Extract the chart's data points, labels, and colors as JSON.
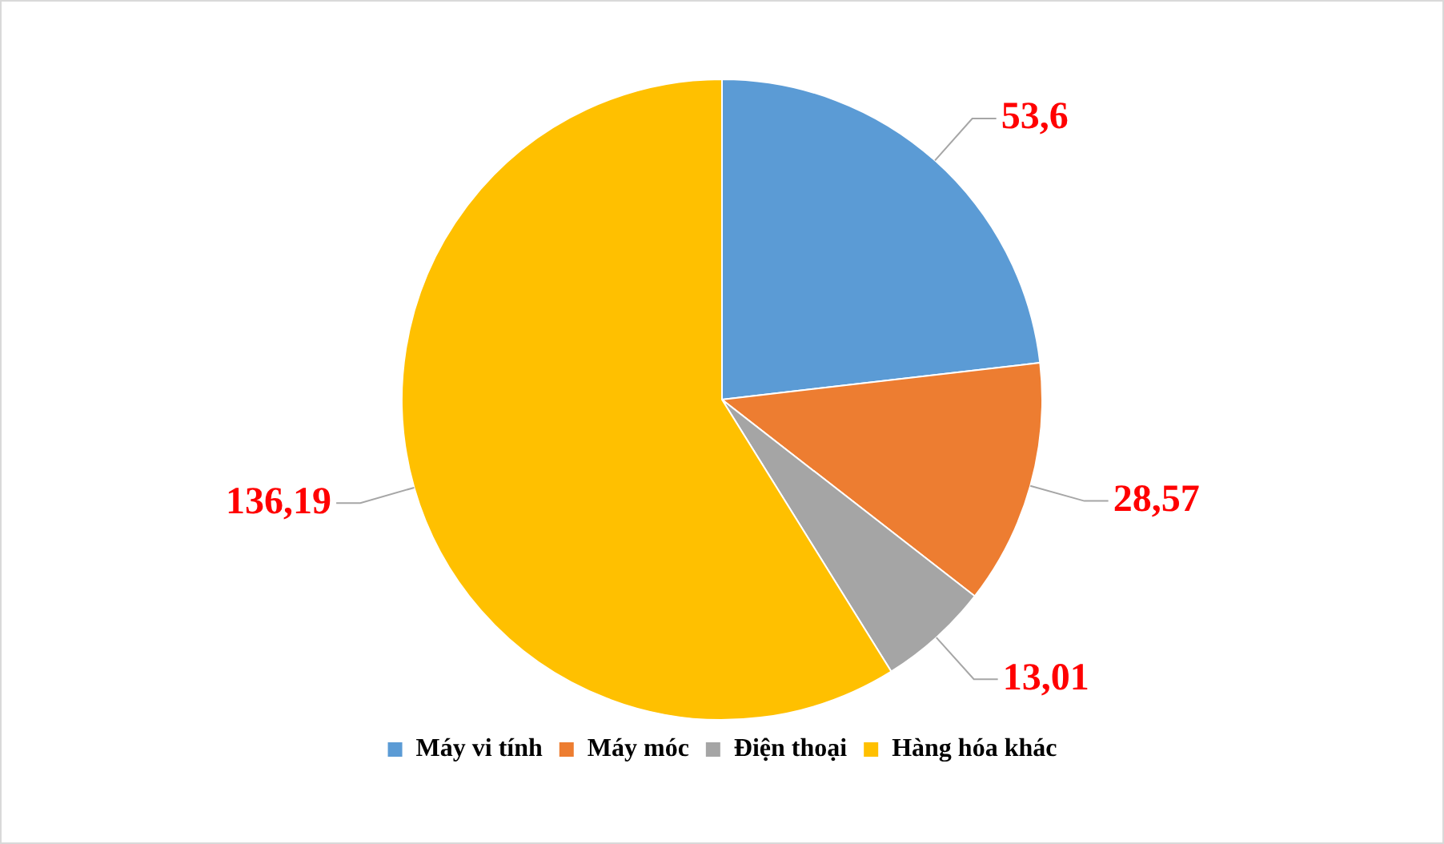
{
  "chart_data": {
    "type": "pie",
    "categories": [
      "Máy vi tính",
      "Máy móc",
      "Điện thoại",
      "Hàng hóa khác"
    ],
    "values": [
      53.6,
      28.57,
      13.01,
      136.19
    ],
    "value_labels": [
      "53,6",
      "28,57",
      "13,01",
      "136,19"
    ],
    "colors": [
      "#5b9bd5",
      "#ed7d31",
      "#a5a5a5",
      "#ffc000"
    ],
    "legend": "bottom"
  }
}
